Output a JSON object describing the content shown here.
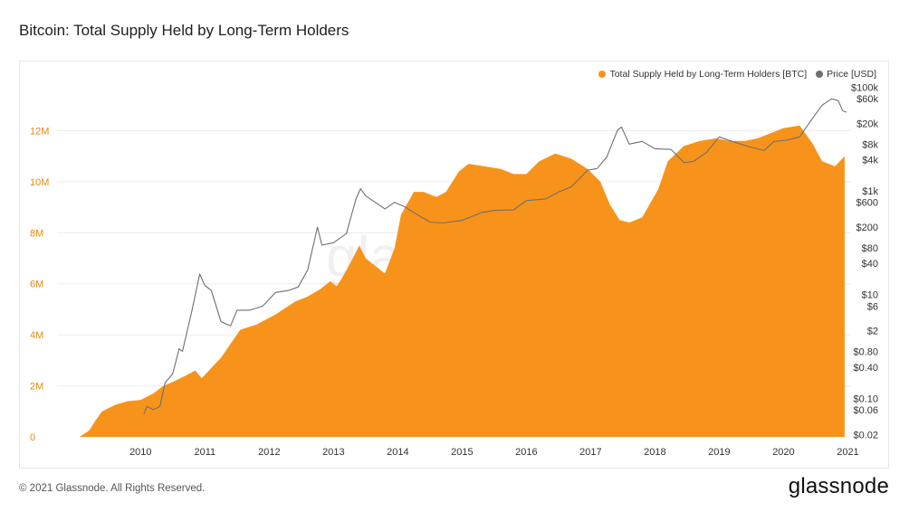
{
  "title": "Bitcoin: Total Supply Held by Long-Term Holders",
  "legend": {
    "series1": "Total Supply Held by Long-Term Holders [BTC]",
    "series2": "Price [USD]"
  },
  "footer": {
    "copyright": "© 2021 Glassnode. All Rights Reserved.",
    "logo": "glassnode"
  },
  "watermark": "glassnode",
  "colors": {
    "supply": "#f7931a",
    "price": "#6f6f6f",
    "supply_axis": "#e8880f",
    "grid": "#ececec"
  },
  "chart_data": {
    "type": "area",
    "x_ticks": [
      "2010",
      "2011",
      "2012",
      "2013",
      "2014",
      "2015",
      "2016",
      "2017",
      "2018",
      "2019",
      "2020",
      "2021"
    ],
    "y_left": {
      "ticks": [
        "0",
        "2M",
        "4M",
        "6M",
        "8M",
        "10M",
        "12M"
      ],
      "values": [
        0,
        2000000,
        4000000,
        6000000,
        8000000,
        10000000,
        12000000
      ],
      "range": [
        0,
        14000000
      ]
    },
    "y_right": {
      "scale": "log",
      "ticks": [
        "$0.02",
        "$0.06",
        "$0.10",
        "$0.40",
        "$0.80",
        "$2",
        "$6",
        "$10",
        "$40",
        "$80",
        "$200",
        "$600",
        "$1k",
        "$4k",
        "$8k",
        "$20k",
        "$60k",
        "$100k"
      ],
      "values": [
        0.02,
        0.06,
        0.1,
        0.4,
        0.8,
        2,
        6,
        10,
        40,
        80,
        200,
        600,
        1000,
        4000,
        8000,
        20000,
        60000,
        100000
      ]
    },
    "series": [
      {
        "name": "Total Supply Held by Long-Term Holders [BTC]",
        "style": "area",
        "points": [
          [
            2009.55,
            0
          ],
          [
            2009.7,
            250000
          ],
          [
            2009.8,
            650000
          ],
          [
            2009.9,
            1000000
          ],
          [
            2010.1,
            1250000
          ],
          [
            2010.3,
            1400000
          ],
          [
            2010.5,
            1450000
          ],
          [
            2010.7,
            1700000
          ],
          [
            2010.85,
            2000000
          ],
          [
            2011.0,
            2150000
          ],
          [
            2011.2,
            2400000
          ],
          [
            2011.35,
            2600000
          ],
          [
            2011.45,
            2300000
          ],
          [
            2011.6,
            2700000
          ],
          [
            2011.75,
            3100000
          ],
          [
            2011.9,
            3650000
          ],
          [
            2012.05,
            4200000
          ],
          [
            2012.3,
            4400000
          ],
          [
            2012.6,
            4800000
          ],
          [
            2012.9,
            5300000
          ],
          [
            2013.1,
            5500000
          ],
          [
            2013.3,
            5800000
          ],
          [
            2013.45,
            6100000
          ],
          [
            2013.55,
            5900000
          ],
          [
            2013.65,
            6300000
          ],
          [
            2013.8,
            7000000
          ],
          [
            2013.9,
            7500000
          ],
          [
            2014.0,
            7000000
          ],
          [
            2014.15,
            6700000
          ],
          [
            2014.3,
            6400000
          ],
          [
            2014.45,
            7400000
          ],
          [
            2014.55,
            8700000
          ],
          [
            2014.75,
            9600000
          ],
          [
            2014.9,
            9600000
          ],
          [
            2015.1,
            9400000
          ],
          [
            2015.25,
            9600000
          ],
          [
            2015.45,
            10400000
          ],
          [
            2015.6,
            10700000
          ],
          [
            2015.85,
            10600000
          ],
          [
            2016.1,
            10500000
          ],
          [
            2016.3,
            10300000
          ],
          [
            2016.5,
            10300000
          ],
          [
            2016.7,
            10800000
          ],
          [
            2016.95,
            11100000
          ],
          [
            2017.2,
            10900000
          ],
          [
            2017.45,
            10500000
          ],
          [
            2017.65,
            10000000
          ],
          [
            2017.8,
            9100000
          ],
          [
            2017.95,
            8500000
          ],
          [
            2018.1,
            8400000
          ],
          [
            2018.3,
            8600000
          ],
          [
            2018.55,
            9700000
          ],
          [
            2018.7,
            10800000
          ],
          [
            2018.95,
            11400000
          ],
          [
            2019.2,
            11600000
          ],
          [
            2019.45,
            11700000
          ],
          [
            2019.65,
            11600000
          ],
          [
            2019.9,
            11600000
          ],
          [
            2020.1,
            11700000
          ],
          [
            2020.3,
            11900000
          ],
          [
            2020.5,
            12100000
          ],
          [
            2020.75,
            12200000
          ],
          [
            2020.95,
            11500000
          ],
          [
            2021.1,
            10800000
          ],
          [
            2021.3,
            10600000
          ],
          [
            2021.45,
            11000000
          ]
        ]
      },
      {
        "name": "Price [USD]",
        "style": "line",
        "scale": "log",
        "points": [
          [
            2010.55,
            0.05
          ],
          [
            2010.6,
            0.07
          ],
          [
            2010.7,
            0.06
          ],
          [
            2010.8,
            0.07
          ],
          [
            2010.88,
            0.2
          ],
          [
            2010.95,
            0.25
          ],
          [
            2011.0,
            0.3
          ],
          [
            2011.1,
            0.9
          ],
          [
            2011.15,
            0.8
          ],
          [
            2011.3,
            5
          ],
          [
            2011.42,
            25
          ],
          [
            2011.5,
            15
          ],
          [
            2011.6,
            12
          ],
          [
            2011.75,
            3
          ],
          [
            2011.9,
            2.5
          ],
          [
            2012.0,
            5
          ],
          [
            2012.2,
            5
          ],
          [
            2012.4,
            6
          ],
          [
            2012.6,
            11
          ],
          [
            2012.8,
            12
          ],
          [
            2012.95,
            14
          ],
          [
            2013.1,
            30
          ],
          [
            2013.25,
            200
          ],
          [
            2013.32,
            90
          ],
          [
            2013.5,
            100
          ],
          [
            2013.7,
            150
          ],
          [
            2013.85,
            700
          ],
          [
            2013.92,
            1100
          ],
          [
            2014.0,
            800
          ],
          [
            2014.15,
            600
          ],
          [
            2014.3,
            450
          ],
          [
            2014.45,
            600
          ],
          [
            2014.6,
            500
          ],
          [
            2014.8,
            350
          ],
          [
            2015.0,
            250
          ],
          [
            2015.2,
            240
          ],
          [
            2015.5,
            270
          ],
          [
            2015.8,
            380
          ],
          [
            2016.0,
            420
          ],
          [
            2016.3,
            430
          ],
          [
            2016.5,
            650
          ],
          [
            2016.8,
            700
          ],
          [
            2017.0,
            950
          ],
          [
            2017.2,
            1200
          ],
          [
            2017.45,
            2500
          ],
          [
            2017.6,
            2700
          ],
          [
            2017.75,
            4500
          ],
          [
            2017.92,
            15000
          ],
          [
            2017.98,
            17000
          ],
          [
            2018.1,
            8000
          ],
          [
            2018.3,
            9000
          ],
          [
            2018.5,
            6500
          ],
          [
            2018.75,
            6300
          ],
          [
            2018.95,
            3500
          ],
          [
            2019.1,
            3700
          ],
          [
            2019.3,
            5500
          ],
          [
            2019.5,
            11000
          ],
          [
            2019.7,
            9000
          ],
          [
            2019.95,
            7200
          ],
          [
            2020.2,
            6000
          ],
          [
            2020.35,
            9000
          ],
          [
            2020.55,
            9500
          ],
          [
            2020.75,
            11000
          ],
          [
            2020.95,
            25000
          ],
          [
            2021.1,
            45000
          ],
          [
            2021.25,
            60000
          ],
          [
            2021.35,
            55000
          ],
          [
            2021.42,
            35000
          ],
          [
            2021.48,
            33000
          ]
        ]
      }
    ],
    "grid": true,
    "legend_position": "top-right"
  }
}
